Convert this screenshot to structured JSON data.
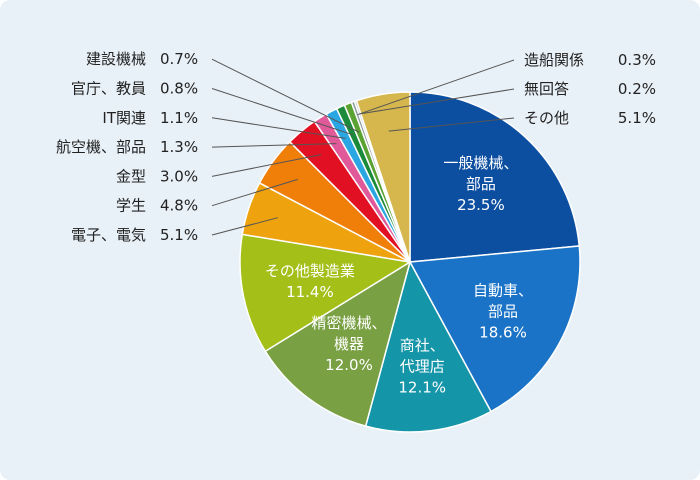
{
  "chart_data": {
    "type": "pie",
    "start": "12 o'clock",
    "direction": "clockwise",
    "slices": [
      {
        "label": "一般機械、部品",
        "lines": [
          "一般機械、",
          "部品"
        ],
        "value": 23.5,
        "value_text": "23.5%",
        "color": "#0c4ea0",
        "inside": true
      },
      {
        "label": "自動車、部品",
        "lines": [
          "自動車、",
          "部品"
        ],
        "value": 18.6,
        "value_text": "18.6%",
        "color": "#1a73c6",
        "inside": true
      },
      {
        "label": "商社、代理店",
        "lines": [
          "商社、",
          "代理店"
        ],
        "value": 12.1,
        "value_text": "12.1%",
        "color": "#1595a8",
        "inside": true
      },
      {
        "label": "精密機械、機器",
        "lines": [
          "精密機械、",
          "機器"
        ],
        "value": 12.0,
        "value_text": "12.0%",
        "color": "#79a042",
        "inside": true
      },
      {
        "label": "その他製造業",
        "lines": [
          "その他製造業"
        ],
        "value": 11.4,
        "value_text": "11.4%",
        "color": "#a3bf18",
        "inside": true
      },
      {
        "label": "電子、電気",
        "value": 5.1,
        "value_text": "5.1%",
        "color": "#eea20d",
        "inside": false,
        "side": "left"
      },
      {
        "label": "学生",
        "value": 4.8,
        "value_text": "4.8%",
        "color": "#f07f0a",
        "inside": false,
        "side": "left"
      },
      {
        "label": "金型",
        "value": 3.0,
        "value_text": "3.0%",
        "color": "#e11022",
        "inside": false,
        "side": "left"
      },
      {
        "label": "航空機、部品",
        "value": 1.3,
        "value_text": "1.3%",
        "color": "#e05a9a",
        "inside": false,
        "side": "left"
      },
      {
        "label": "IT関連",
        "value": 1.1,
        "value_text": "1.1%",
        "color": "#2aa6e2",
        "inside": false,
        "side": "left"
      },
      {
        "label": "官庁、教員",
        "value": 0.8,
        "value_text": "0.8%",
        "color": "#1b8a3a",
        "inside": false,
        "side": "left"
      },
      {
        "label": "建設機械",
        "value": 0.7,
        "value_text": "0.7%",
        "color": "#5aa232",
        "inside": false,
        "side": "left"
      },
      {
        "label": "造船関係",
        "value": 0.3,
        "value_text": "0.3%",
        "color": "#8a9a9c",
        "inside": false,
        "side": "right"
      },
      {
        "label": "無回答",
        "value": 0.2,
        "value_text": "0.2%",
        "color": "#b8b8b8",
        "inside": false,
        "side": "right"
      },
      {
        "label": "その他",
        "value": 5.1,
        "value_text": "5.1%",
        "color": "#d5b74e",
        "inside": false,
        "side": "right"
      }
    ]
  }
}
